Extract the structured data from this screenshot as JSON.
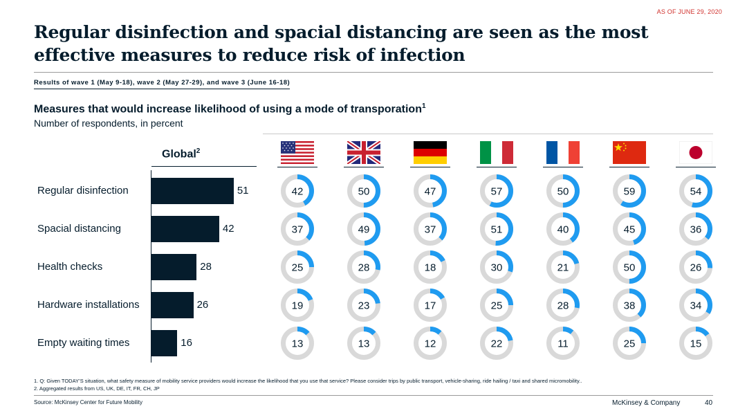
{
  "header": {
    "as_of": "AS OF JUNE 29, 2020",
    "title": "Regular disinfection and spacial distancing are seen as the most effective measures to reduce risk of infection",
    "waves": "Results of wave 1 (May 9-18), wave 2 (May 27-29), and wave 3 (June 16-18)",
    "subtitle": "Measures that would increase likelihood of using a mode of transporation",
    "subtitle_sup": "1",
    "units": "Number of respondents, in percent"
  },
  "colors": {
    "navy": "#051c2c",
    "blue": "#1f9bf0",
    "grey": "#d9d9d9",
    "accent_red": "#d0312d"
  },
  "chart_data": {
    "type": "bar",
    "title": "Global",
    "title_sup": "2",
    "categories": [
      "Regular disinfection",
      "Spacial distancing",
      "Health checks",
      "Hardware installations",
      "Empty waiting times"
    ],
    "global": [
      51,
      42,
      28,
      26,
      16
    ],
    "countries": [
      {
        "flag": "us-flag-icon",
        "values": [
          42,
          37,
          25,
          19,
          13
        ]
      },
      {
        "flag": "uk-flag-icon",
        "values": [
          50,
          49,
          28,
          23,
          13
        ]
      },
      {
        "flag": "de-flag-icon",
        "values": [
          47,
          37,
          18,
          17,
          12
        ]
      },
      {
        "flag": "it-flag-icon",
        "values": [
          57,
          51,
          30,
          25,
          22
        ]
      },
      {
        "flag": "fr-flag-icon",
        "values": [
          50,
          40,
          21,
          28,
          11
        ]
      },
      {
        "flag": "cn-flag-icon",
        "values": [
          59,
          45,
          50,
          38,
          25
        ]
      },
      {
        "flag": "jp-flag-icon",
        "values": [
          54,
          36,
          26,
          34,
          15
        ]
      }
    ],
    "value_unit": "percent",
    "grid": false
  },
  "footer": {
    "note1": "1. Q: Given TODAY’S situation, what safety measure of mobility service providers would increase the likelihood that you use that service? Please consider trips by public transport, vehicle-sharing, ride hailing / taxi and shared micromobility..",
    "note2": "2. Aggregated results from US, UK, DE, IT, FR, CH, JP",
    "source": "Source: McKinsey Center for Future Mobility",
    "brand": "McKinsey & Company",
    "page": "40"
  }
}
